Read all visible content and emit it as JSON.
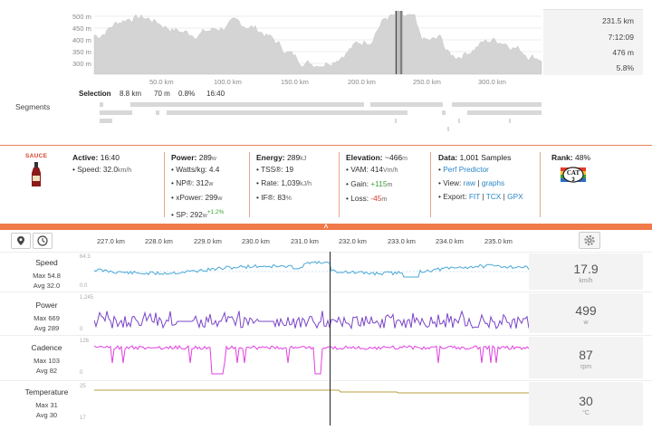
{
  "overview": {
    "y_ticks": [
      "500 m",
      "450 m",
      "400 m",
      "350 m",
      "300 m"
    ],
    "x_ticks": [
      "50.0 km",
      "100.0 km",
      "150.0 km",
      "200.0 km",
      "250.0 km",
      "300.0 km"
    ],
    "summary": [
      "231.5 km",
      "7:12:09",
      "476 m",
      "5.8%"
    ],
    "selection": {
      "label": "Selection",
      "distance": "8.8 km",
      "elevation": "70 m",
      "grade": "0.8%",
      "time": "16:40"
    }
  },
  "segments_label": "Segments",
  "stats": {
    "logo": "SAUCE",
    "active": {
      "label": "Active:",
      "value": "16:40",
      "speed_label": "Speed:",
      "speed": "32.0",
      "speed_unit": "km/h"
    },
    "power": {
      "label": "Power:",
      "value": "289",
      "unit": "w",
      "wkg_label": "Watts/kg:",
      "wkg": "4.4",
      "np_label": "NP®:",
      "np": "312",
      "np_unit": "w",
      "xp_label": "xPower:",
      "xp": "299",
      "xp_unit": "w",
      "sp_label": "SP:",
      "sp": "292",
      "sp_unit": "w",
      "sp_delta": "+1.2%"
    },
    "energy": {
      "label": "Energy:",
      "value": "289",
      "unit": "kJ",
      "tss_label": "TSS®:",
      "tss": "19",
      "rate_label": "Rate:",
      "rate": "1,039",
      "rate_unit": "kJ/h",
      "if_label": "IF®:",
      "if": "83",
      "if_unit": "%"
    },
    "elevation": {
      "label": "Elevation:",
      "value": "~466",
      "unit": "m",
      "vam_label": "VAM:",
      "vam": "414",
      "vam_unit": "Vm/h",
      "gain_label": "Gain:",
      "gain": "+115",
      "gain_unit": "m",
      "loss_label": "Loss:",
      "loss": "-45",
      "loss_unit": "m"
    },
    "data": {
      "label": "Data:",
      "value": "1,001 Samples",
      "predictor": "Perf Predictor",
      "view_label": "View:",
      "view_raw": "raw",
      "view_sep": "|",
      "view_graphs": "graphs",
      "export_label": "Export:",
      "export_fit": "FIT",
      "export_sep1": "|",
      "export_tcx": "TCX",
      "export_sep2": "|",
      "export_gpx": "GPX"
    },
    "rank": {
      "label": "Rank:",
      "value": "48%",
      "badge": "CAT",
      "badge_num": "3"
    }
  },
  "collapse_glyph": "˄",
  "timeline_ticks": [
    "227.0 km",
    "228.0 km",
    "229.0 km",
    "230.0 km",
    "231.0 km",
    "232.0 km",
    "233.0 km",
    "234.0 km",
    "235.0 km"
  ],
  "charts": [
    {
      "name": "Speed",
      "max": "Max 54.8",
      "avg": "Avg 32.0",
      "axis_top": "64.3",
      "axis_bottom": "0.0",
      "value": "17.9",
      "unit": "km/h",
      "color": "#4aa8d8"
    },
    {
      "name": "Power",
      "max": "Max 669",
      "avg": "Avg 289",
      "axis_top": "1,245",
      "axis_bottom": "0",
      "value": "499",
      "unit": "w",
      "color": "#7a45c8"
    },
    {
      "name": "Cadence",
      "max": "Max 103",
      "avg": "Avg 82",
      "axis_top": "126",
      "axis_bottom": "0",
      "value": "87",
      "unit": "rpm",
      "color": "#e040e0"
    },
    {
      "name": "Temperature",
      "max": "Max 31",
      "avg": "Avg 30",
      "axis_top": "25",
      "axis_bottom": "17",
      "value": "30",
      "unit": "°C",
      "color": "#b8a040"
    }
  ]
}
